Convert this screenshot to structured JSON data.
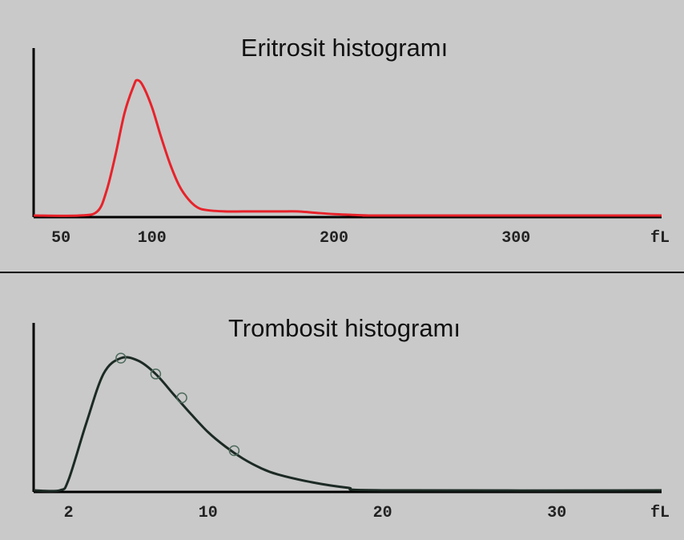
{
  "chart_data": [
    {
      "type": "line",
      "title": "Eritrosit histogramı",
      "xlabel": "fL",
      "ylabel": "",
      "xlim": [
        35,
        380
      ],
      "ylim": [
        0,
        100
      ],
      "xticks": [
        50,
        100,
        200,
        300
      ],
      "tick_labels": [
        "50",
        "100",
        "200",
        "300"
      ],
      "unit_label": "fL",
      "color": "#e8222a",
      "series": [
        {
          "x": [
            35,
            60,
            70,
            75,
            80,
            85,
            90,
            92,
            95,
            100,
            105,
            110,
            115,
            120,
            125,
            130,
            140,
            150,
            160,
            170,
            180,
            190,
            200,
            210,
            220,
            230,
            380
          ],
          "y": [
            0,
            0,
            3,
            18,
            45,
            76,
            96,
            100,
            96,
            80,
            58,
            38,
            22,
            12,
            6,
            4,
            3,
            3,
            3,
            3,
            3,
            2,
            1,
            0.5,
            0,
            0,
            0
          ]
        }
      ]
    },
    {
      "type": "line",
      "title": "Trombosit histogramı",
      "xlabel": "fL",
      "ylabel": "",
      "xlim": [
        0,
        36
      ],
      "ylim": [
        0,
        100
      ],
      "xticks": [
        2,
        10,
        20,
        30
      ],
      "tick_labels": [
        "2",
        "10",
        "20",
        "30"
      ],
      "unit_label": "fL",
      "color": "#1c2a24",
      "series": [
        {
          "x": [
            0,
            1.5,
            2,
            3,
            4,
            5,
            6,
            7,
            8,
            9,
            10,
            11,
            12,
            13,
            14,
            16,
            18,
            20,
            36
          ],
          "y": [
            0,
            0,
            8,
            50,
            88,
            100,
            98,
            88,
            73,
            58,
            44,
            33,
            24,
            17,
            12,
            6,
            2,
            0,
            0
          ]
        }
      ],
      "markers": {
        "x": [
          5,
          7,
          8.5,
          11.5
        ],
        "y": [
          100,
          88,
          70,
          30
        ]
      }
    }
  ]
}
